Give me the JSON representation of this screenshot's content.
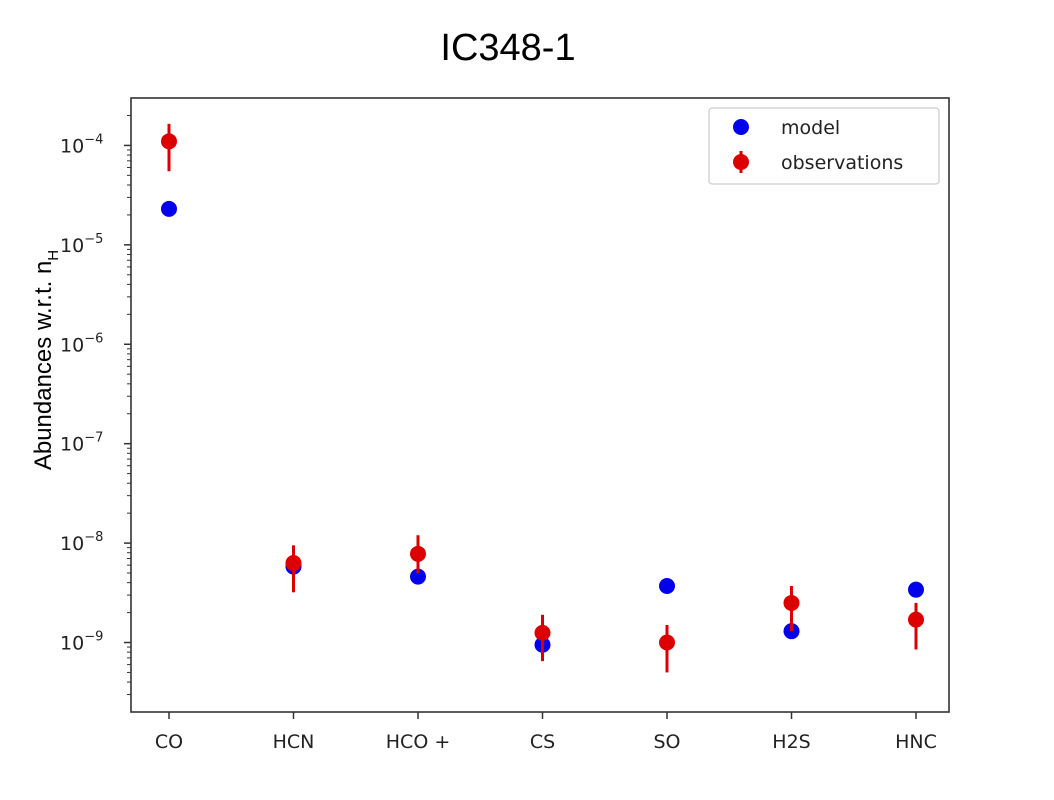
{
  "chart_data": {
    "type": "scatter",
    "title": "IC348-1",
    "xlabel": "",
    "ylabel": "Abundances w.r.t. n",
    "ylabel_subscript": "H",
    "yscale": "log",
    "ylim": [
      2e-10,
      0.0003
    ],
    "yticks": [
      {
        "value": 0.0001,
        "base": "10",
        "exp": "−4"
      },
      {
        "value": 1e-05,
        "base": "10",
        "exp": "−5"
      },
      {
        "value": 1e-06,
        "base": "10",
        "exp": "−6"
      },
      {
        "value": 1e-07,
        "base": "10",
        "exp": "−7"
      },
      {
        "value": 1e-08,
        "base": "10",
        "exp": "−8"
      },
      {
        "value": 1e-09,
        "base": "10",
        "exp": "−9"
      }
    ],
    "categories": [
      "CO",
      "HCN",
      "HCO +",
      "CS",
      "SO",
      "H2S",
      "HNC"
    ],
    "grid": false,
    "legend_position": "top-right",
    "series": [
      {
        "name": "model",
        "color": "#0000ee",
        "values": [
          2.3e-05,
          5.8e-09,
          4.6e-09,
          9.5e-10,
          3.7e-09,
          1.3e-09,
          3.4e-09
        ]
      },
      {
        "name": "observations",
        "color": "#dd0000",
        "values": [
          0.00011,
          6.3e-09,
          7.8e-09,
          1.25e-09,
          1e-09,
          2.5e-09,
          1.7e-09
        ],
        "err_low": [
          5.5e-05,
          3.2e-09,
          5e-09,
          6.5e-10,
          5e-10,
          1.3e-09,
          8.5e-10
        ],
        "err_high": [
          0.000165,
          9.5e-09,
          1.2e-08,
          1.9e-09,
          1.5e-09,
          3.7e-09,
          2.5e-09
        ]
      }
    ]
  }
}
